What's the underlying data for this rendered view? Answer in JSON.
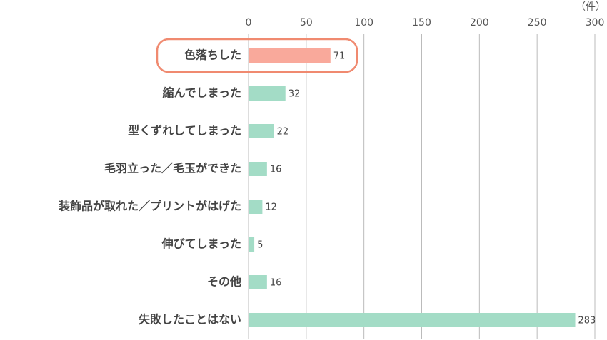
{
  "chart_data": {
    "type": "hbar",
    "unit_label": "（件）",
    "categories": [
      "色落ちした",
      "縮んでしまった",
      "型くずれしてしまった",
      "毛羽立った／毛玉ができた",
      "装飾品が取れた／プリントがはげた",
      "伸びてしまった",
      "その他",
      "失敗したことはない"
    ],
    "values": [
      71,
      32,
      22,
      16,
      12,
      5,
      16,
      283
    ],
    "colors": [
      "#f9a99b",
      "#a3dcc6",
      "#a3dcc6",
      "#a3dcc6",
      "#a3dcc6",
      "#a3dcc6",
      "#a3dcc6",
      "#a3dcc6"
    ],
    "highlight_index": 0,
    "highlight_color": "#f08a70",
    "xlim": [
      0,
      300
    ],
    "xticks": [
      0,
      50,
      100,
      150,
      200,
      250,
      300
    ],
    "grid": true
  }
}
